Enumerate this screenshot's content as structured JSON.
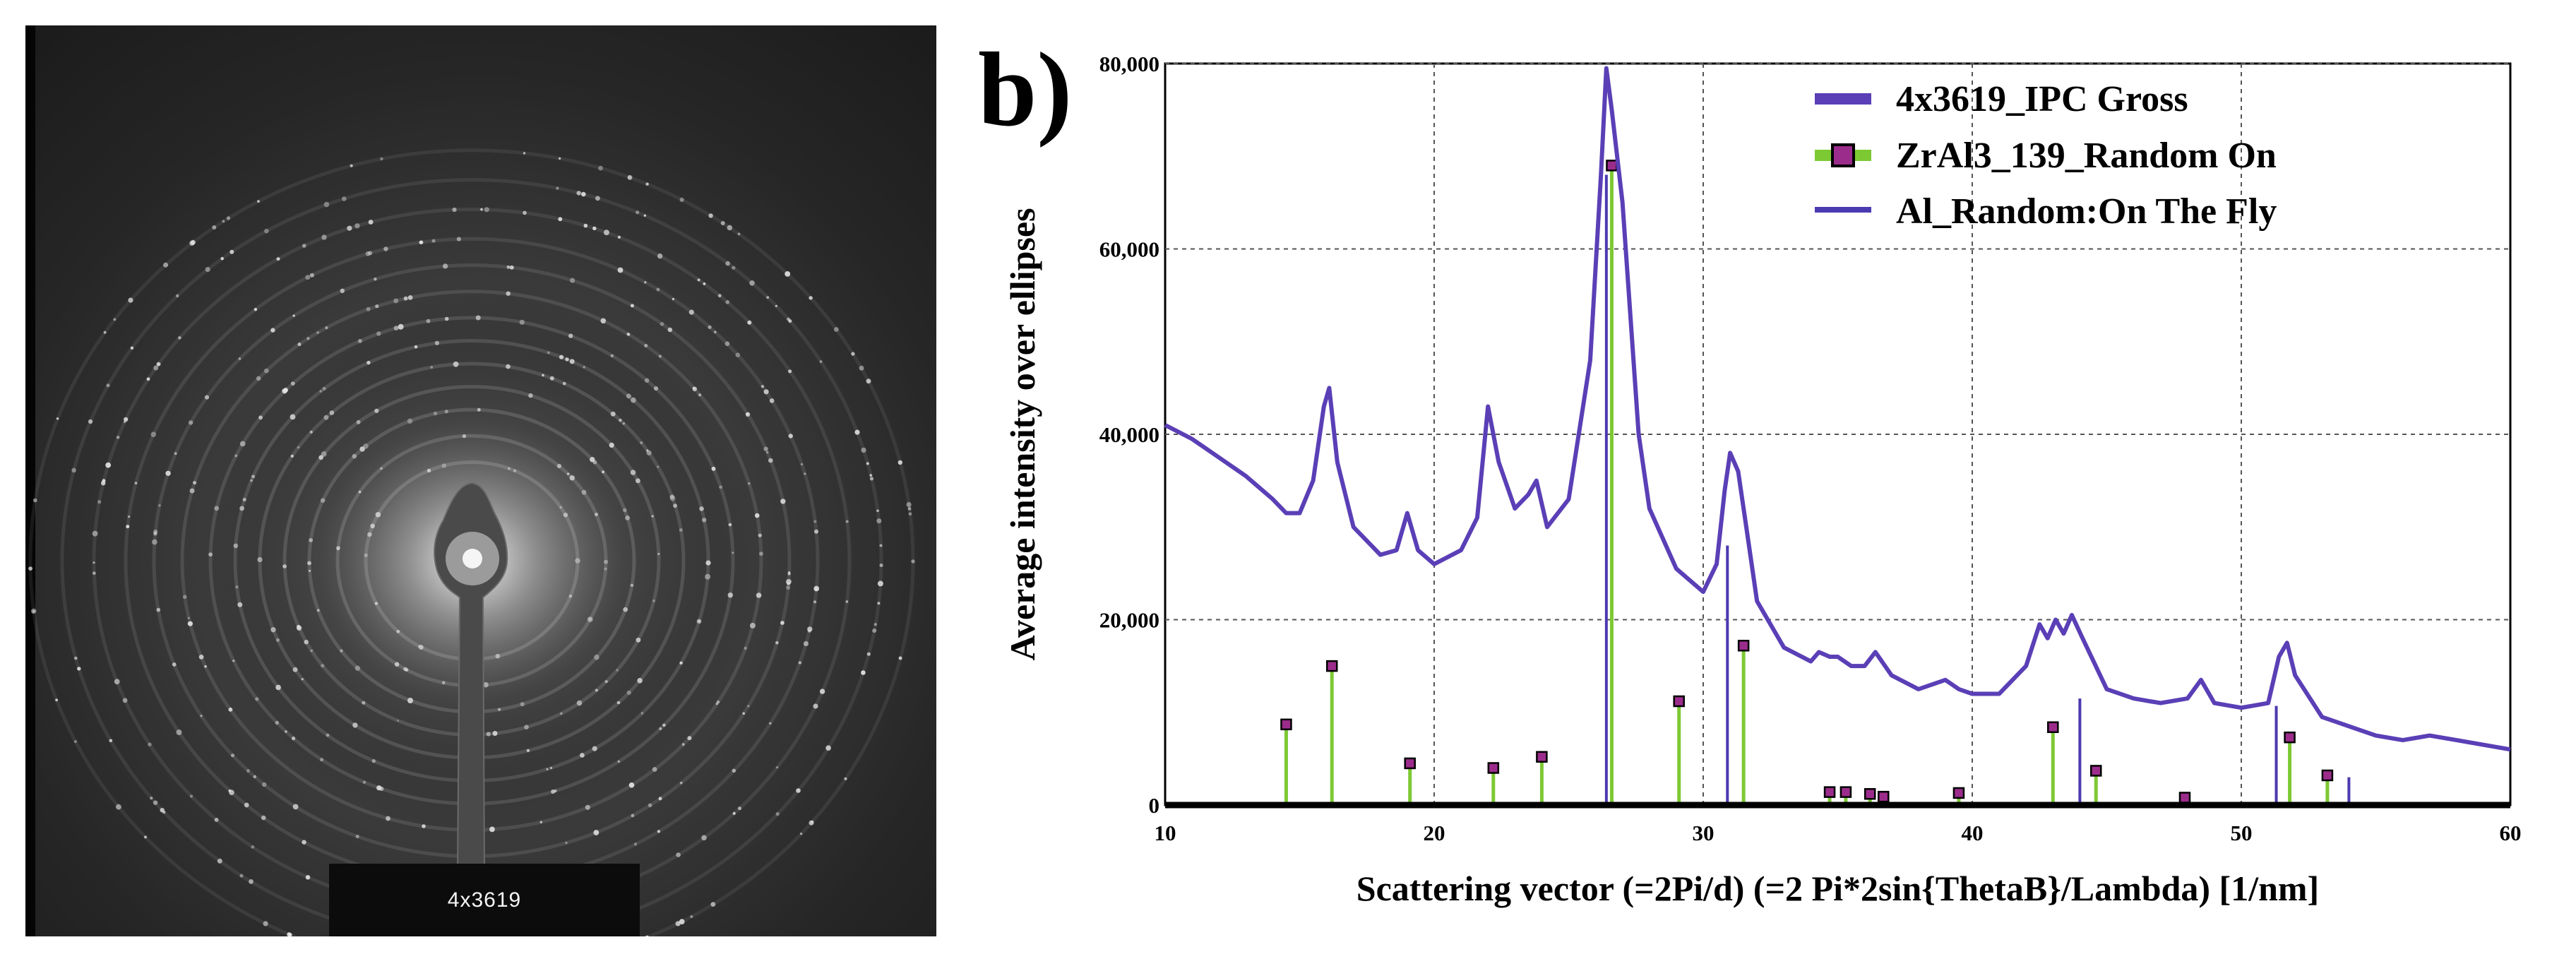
{
  "left_panel": {
    "sample_label": "4x3619"
  },
  "panel_letter": "b)",
  "colors": {
    "measured": "#5a3fb6",
    "zral3": "#7dc934",
    "zral3_marker": "#9c2c8c",
    "al": "#4b3ab0"
  },
  "chart_data": {
    "type": "line",
    "xlabel": "Scattering vector (=2Pi/d) (=2 Pi*2sin{ThetaB}/Lambda) [1/nm]",
    "ylabel": "Average intensity over ellipses",
    "xlim": [
      10,
      60
    ],
    "ylim": [
      0,
      80000
    ],
    "x_ticks": [
      10,
      20,
      30,
      40,
      50,
      60
    ],
    "y_ticks": [
      0,
      20000,
      40000,
      60000,
      80000
    ],
    "y_tick_labels": [
      "0",
      "20,000",
      "40,000",
      "60,000",
      "80,000"
    ],
    "grid": true,
    "legend_position": "top-right",
    "series": [
      {
        "name": "4x3619_IPC Gross",
        "type": "line",
        "x": [
          10,
          11,
          12,
          13,
          14,
          14.5,
          15,
          15.5,
          15.9,
          16.1,
          16.4,
          17,
          18,
          18.6,
          19,
          19.4,
          20,
          21,
          21.6,
          22,
          22.4,
          23,
          23.5,
          23.8,
          24.2,
          25,
          25.8,
          26.2,
          26.4,
          26.6,
          27,
          27.6,
          28,
          29,
          30,
          30.5,
          30.8,
          31,
          31.3,
          31.6,
          32,
          33,
          34,
          34.3,
          34.7,
          35,
          35.5,
          36,
          36.4,
          37,
          38,
          39,
          39.5,
          40,
          41,
          42,
          42.5,
          42.8,
          43.1,
          43.4,
          43.7,
          44.1,
          45,
          46,
          47,
          48,
          48.5,
          49,
          50,
          51,
          51.4,
          51.7,
          52,
          53,
          54,
          55,
          56,
          57,
          58,
          59,
          60
        ],
        "y": [
          41000,
          39500,
          37500,
          35500,
          33000,
          31500,
          31500,
          35000,
          43000,
          45000,
          37000,
          30000,
          27000,
          27500,
          31500,
          27500,
          26000,
          27500,
          31000,
          43000,
          37000,
          32000,
          33500,
          35000,
          30000,
          33000,
          48000,
          68000,
          79500,
          75000,
          65000,
          40000,
          32000,
          25500,
          23000,
          26000,
          34000,
          38000,
          36000,
          30000,
          22000,
          17000,
          15500,
          16500,
          16000,
          16000,
          15000,
          15000,
          16500,
          14000,
          12500,
          13500,
          12500,
          12000,
          12000,
          15000,
          19500,
          18000,
          20000,
          18500,
          20500,
          18000,
          12500,
          11500,
          11000,
          11500,
          13500,
          11000,
          10500,
          11000,
          16000,
          17500,
          14000,
          9500,
          8500,
          7500,
          7000,
          7500,
          7000,
          6500,
          6000
        ]
      },
      {
        "name": "ZrAl3_139_Random On",
        "type": "stick",
        "x": [
          14.5,
          16.2,
          19.1,
          22.2,
          24.0,
          26.6,
          29.1,
          31.5,
          43.0,
          44.6,
          51.8,
          53.2,
          34.7,
          35.3,
          36.2,
          36.7,
          39.5,
          47.9
        ],
        "y": [
          8700,
          15000,
          4500,
          4000,
          5200,
          69000,
          11200,
          17200,
          8400,
          3700,
          7300,
          3200,
          1400,
          1400,
          1200,
          900,
          1300,
          800
        ]
      },
      {
        "name": "Al_Random:On The Fly",
        "type": "stick",
        "x": [
          26.4,
          30.9,
          44.0,
          51.3,
          54.0
        ],
        "y": [
          68000,
          28000,
          11500,
          10700,
          3000
        ]
      }
    ]
  }
}
